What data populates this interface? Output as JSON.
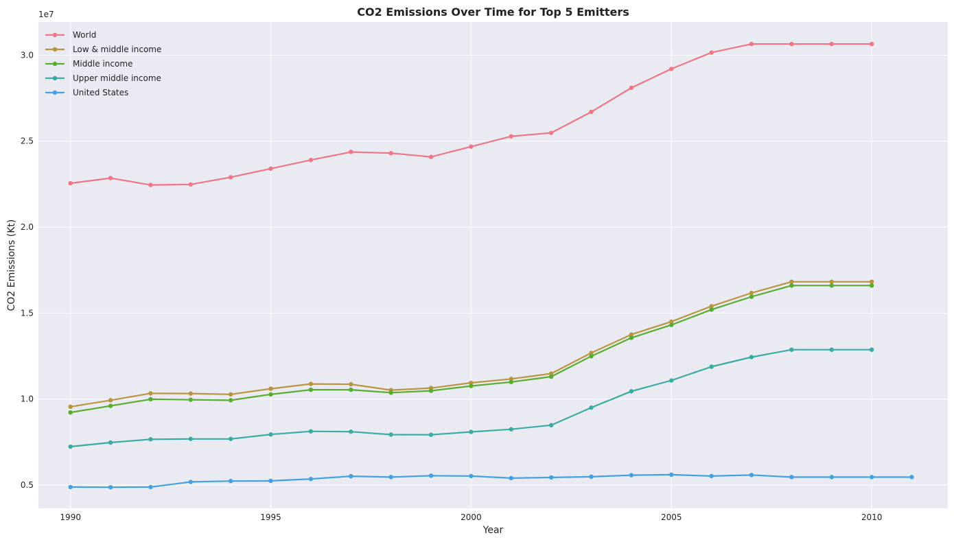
{
  "chart_data": {
    "type": "line",
    "title": "CO2 Emissions Over Time for Top 5 Emitters",
    "xlabel": "Year",
    "ylabel": "CO2 Emissions (Kt)",
    "y_offset_label": "1e7",
    "xlim": [
      1989.2,
      2011.9
    ],
    "ylim": [
      3640000,
      31930000
    ],
    "x_ticks": [
      1990,
      1995,
      2000,
      2005,
      2010
    ],
    "x_tick_labels": [
      "1990",
      "1995",
      "2000",
      "2005",
      "2010"
    ],
    "y_ticks": [
      5000000,
      10000000,
      15000000,
      20000000,
      25000000,
      30000000
    ],
    "y_tick_labels": [
      "0.5",
      "1.0",
      "1.5",
      "2.0",
      "2.5",
      "3.0"
    ],
    "grid": true,
    "legend_position": "top-left",
    "background": "#eaeaf2",
    "series": [
      {
        "name": "World",
        "color": "#f07586",
        "x": [
          1990,
          1991,
          1992,
          1993,
          1994,
          1995,
          1996,
          1997,
          1998,
          1999,
          2000,
          2001,
          2002,
          2003,
          2004,
          2005,
          2006,
          2007,
          2008,
          2009,
          2010
        ],
        "values": [
          22550000,
          22850000,
          22450000,
          22480000,
          22900000,
          23400000,
          23900000,
          24370000,
          24300000,
          24080000,
          24680000,
          25280000,
          25480000,
          26700000,
          28100000,
          29200000,
          30150000,
          30650000,
          30650000,
          30650000,
          30650000
        ]
      },
      {
        "name": "Low & middle income",
        "color": "#bb9440",
        "x": [
          1990,
          1991,
          1992,
          1993,
          1994,
          1995,
          1996,
          1997,
          1998,
          1999,
          2000,
          2001,
          2002,
          2003,
          2004,
          2005,
          2006,
          2007,
          2008,
          2009,
          2010
        ],
        "values": [
          9550000,
          9930000,
          10330000,
          10320000,
          10270000,
          10600000,
          10880000,
          10860000,
          10520000,
          10640000,
          10940000,
          11170000,
          11480000,
          12680000,
          13750000,
          14500000,
          15400000,
          16170000,
          16820000,
          16820000,
          16820000
        ]
      },
      {
        "name": "Middle income",
        "color": "#56ad2e",
        "x": [
          1990,
          1991,
          1992,
          1993,
          1994,
          1995,
          1996,
          1997,
          1998,
          1999,
          2000,
          2001,
          2002,
          2003,
          2004,
          2005,
          2006,
          2007,
          2008,
          2009,
          2010
        ],
        "values": [
          9220000,
          9600000,
          9990000,
          9960000,
          9930000,
          10270000,
          10540000,
          10540000,
          10370000,
          10480000,
          10760000,
          10990000,
          11300000,
          12490000,
          13560000,
          14310000,
          15200000,
          15950000,
          16600000,
          16600000,
          16600000
        ]
      },
      {
        "name": "Upper middle income",
        "color": "#38aba2",
        "x": [
          1990,
          1991,
          1992,
          1993,
          1994,
          1995,
          1996,
          1997,
          1998,
          1999,
          2000,
          2001,
          2002,
          2003,
          2004,
          2005,
          2006,
          2007,
          2008,
          2009,
          2010
        ],
        "values": [
          7230000,
          7470000,
          7660000,
          7680000,
          7680000,
          7940000,
          8120000,
          8100000,
          7930000,
          7920000,
          8090000,
          8240000,
          8480000,
          9500000,
          10450000,
          11080000,
          11880000,
          12440000,
          12870000,
          12870000,
          12870000
        ]
      },
      {
        "name": "United States",
        "color": "#44a1e0",
        "x": [
          1990,
          1991,
          1992,
          1993,
          1994,
          1995,
          1996,
          1997,
          1998,
          1999,
          2000,
          2001,
          2002,
          2003,
          2004,
          2005,
          2006,
          2007,
          2008,
          2009,
          2010,
          2011
        ],
        "values": [
          4880000,
          4870000,
          4880000,
          5180000,
          5230000,
          5240000,
          5350000,
          5510000,
          5460000,
          5540000,
          5520000,
          5400000,
          5440000,
          5480000,
          5570000,
          5600000,
          5520000,
          5580000,
          5460000,
          5460000,
          5460000,
          5460000
        ]
      }
    ]
  }
}
